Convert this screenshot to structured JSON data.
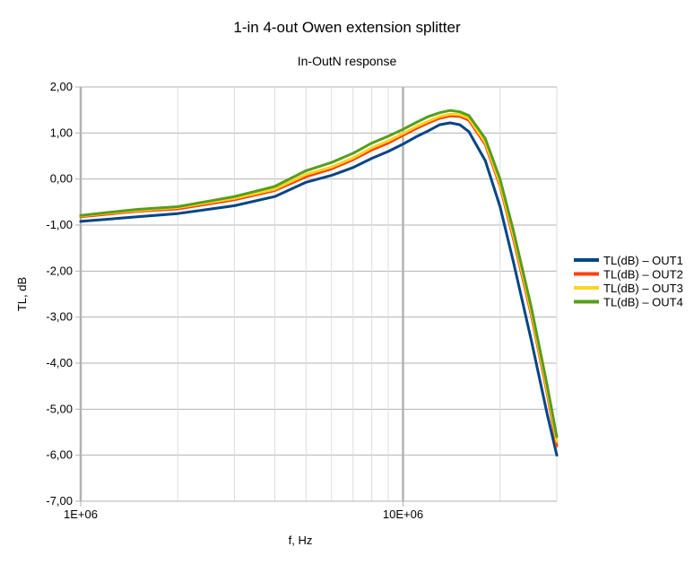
{
  "chart_data": {
    "type": "line",
    "title": "1-in 4-out Owen extension splitter",
    "subtitle": "In-OutN response",
    "xlabel": "f, Hz",
    "ylabel": "TL, dB",
    "x_scale": "log",
    "xlim": [
      1000000,
      30000000
    ],
    "ylim": [
      -7,
      2
    ],
    "x_tick_labels": [
      "1E+06",
      "10E+06"
    ],
    "y_ticks": [
      2,
      1,
      0,
      -1,
      -2,
      -3,
      -4,
      -5,
      -6,
      -7
    ],
    "y_tick_labels": [
      "2,00",
      "1,00",
      "0,00",
      "-1,00",
      "-2,00",
      "-3,00",
      "-4,00",
      "-5,00",
      "-6,00",
      "-7,00"
    ],
    "grid": true,
    "legend_position": "right",
    "x": [
      1000000,
      1500000,
      2000000,
      3000000,
      4000000,
      5000000,
      6000000,
      7000000,
      8000000,
      9000000,
      10000000,
      11000000,
      12000000,
      13000000,
      14000000,
      15000000,
      16000000,
      18000000,
      20000000,
      22000000,
      25000000,
      28000000,
      30000000
    ],
    "series": [
      {
        "name": "TL(dB) – OUT1",
        "color": "#004586",
        "values": [
          -0.92,
          -0.82,
          -0.75,
          -0.58,
          -0.38,
          -0.07,
          0.08,
          0.25,
          0.45,
          0.6,
          0.76,
          0.92,
          1.05,
          1.18,
          1.22,
          1.18,
          1.03,
          0.4,
          -0.6,
          -1.8,
          -3.5,
          -5.1,
          -6.0
        ]
      },
      {
        "name": "TL(dB) – OUT2",
        "color": "#ff420e",
        "values": [
          -0.82,
          -0.7,
          -0.65,
          -0.45,
          -0.25,
          0.05,
          0.22,
          0.42,
          0.63,
          0.78,
          0.95,
          1.1,
          1.22,
          1.32,
          1.37,
          1.36,
          1.28,
          0.75,
          -0.15,
          -1.3,
          -2.95,
          -4.65,
          -5.8
        ]
      },
      {
        "name": "TL(dB) – OUT3",
        "color": "#ffd320",
        "values": [
          -0.8,
          -0.68,
          -0.62,
          -0.42,
          -0.22,
          0.1,
          0.26,
          0.46,
          0.68,
          0.83,
          0.99,
          1.14,
          1.26,
          1.36,
          1.41,
          1.4,
          1.32,
          0.8,
          -0.1,
          -1.22,
          -2.88,
          -4.58,
          -5.7
        ]
      },
      {
        "name": "TL(dB) – OUT4",
        "color": "#579d1c",
        "values": [
          -0.79,
          -0.66,
          -0.6,
          -0.38,
          -0.16,
          0.18,
          0.36,
          0.56,
          0.78,
          0.93,
          1.08,
          1.23,
          1.36,
          1.44,
          1.49,
          1.46,
          1.38,
          0.88,
          0.0,
          -1.12,
          -2.78,
          -4.48,
          -5.6
        ]
      }
    ]
  }
}
